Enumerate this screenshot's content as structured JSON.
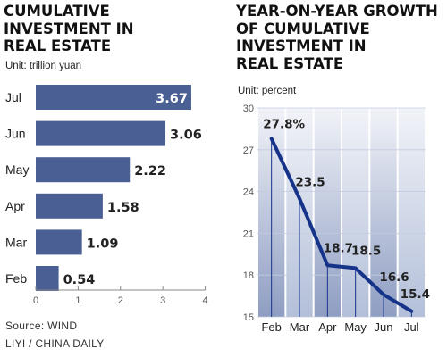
{
  "left_chart": {
    "title": "CUMULATIVE\nINVESTMENT IN\nREAL ESTATE",
    "unit": "Unit: trillion yuan",
    "source": "Source: WIND",
    "byline": "LIYI / CHINA DAILY"
  },
  "right_chart": {
    "title": "YEAR-ON-YEAR GROWTH\nOF CUMULATIVE\nINVESTMENT IN\nREAL ESTATE",
    "unit": "Unit: percent"
  },
  "colors": {
    "bar": "#4a5f94",
    "line": "#16338a",
    "grid_dark": "#8e9dc2",
    "grid_light": "#dfe4ef"
  },
  "chart_data": [
    {
      "type": "bar",
      "orientation": "horizontal",
      "categories": [
        "Jul",
        "Jun",
        "May",
        "Apr",
        "Mar",
        "Feb"
      ],
      "values": [
        3.67,
        3.06,
        2.22,
        1.58,
        1.09,
        0.54
      ],
      "value_labels": [
        "3.67",
        "3.06",
        "2.22",
        "1.58",
        "1.09",
        "0.54"
      ],
      "xlim": [
        0,
        4
      ],
      "xticks": [
        "0",
        "1",
        "2",
        "3",
        "4"
      ]
    },
    {
      "type": "line",
      "categories": [
        "Feb",
        "Mar",
        "Apr",
        "May",
        "Jun",
        "Jul"
      ],
      "values": [
        27.8,
        23.5,
        18.7,
        18.5,
        16.6,
        15.4
      ],
      "value_labels": [
        "27.8%",
        "23.5",
        "18.7",
        "18.5",
        "16.6",
        "15.4"
      ],
      "ylim": [
        15,
        30
      ],
      "yticks": [
        "15",
        "18",
        "21",
        "24",
        "27",
        "30"
      ],
      "grid": true
    }
  ]
}
